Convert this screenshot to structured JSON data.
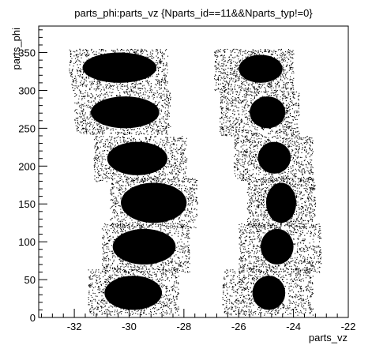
{
  "chart_data": {
    "type": "scatter",
    "title": "parts_phi:parts_vz {Nparts_id==11&&Nparts_typ!=0}",
    "xlabel": "parts_vz",
    "ylabel": "parts_phi",
    "xlim": [
      -33.3,
      -22.0
    ],
    "ylim": [
      0,
      385
    ],
    "x_ticks": [
      -32,
      -30,
      -28,
      -26,
      -24,
      -22
    ],
    "x_tick_labels": [
      "-32",
      "-30",
      "-28",
      "-26",
      "-24",
      "-22"
    ],
    "y_ticks": [
      0,
      50,
      100,
      150,
      200,
      250,
      300,
      350
    ],
    "y_tick_labels": [
      "0",
      "50",
      "100",
      "150",
      "200",
      "250",
      "300",
      "350"
    ],
    "grid": false,
    "legend": "none",
    "marker_color": "#000000",
    "clusters": [
      {
        "x_range": [
          -32.2,
          -28.6
        ],
        "y_range": [
          300,
          355
        ],
        "dense_x": [
          -31.7,
          -29.0
        ],
        "dense_y": [
          310,
          350
        ]
      },
      {
        "x_range": [
          -32.0,
          -28.5
        ],
        "y_range": [
          242,
          300
        ],
        "dense_x": [
          -31.4,
          -28.9
        ],
        "dense_y": [
          250,
          292
        ]
      },
      {
        "x_range": [
          -31.3,
          -27.9
        ],
        "y_range": [
          180,
          240
        ],
        "dense_x": [
          -30.8,
          -28.6
        ],
        "dense_y": [
          188,
          232
        ]
      },
      {
        "x_range": [
          -30.7,
          -27.5
        ],
        "y_range": [
          118,
          185
        ],
        "dense_x": [
          -30.3,
          -27.9
        ],
        "dense_y": [
          125,
          178
        ]
      },
      {
        "x_range": [
          -31.0,
          -27.8
        ],
        "y_range": [
          60,
          125
        ],
        "dense_x": [
          -30.6,
          -28.3
        ],
        "dense_y": [
          70,
          117
        ]
      },
      {
        "x_range": [
          -31.5,
          -28.2
        ],
        "y_range": [
          3,
          65
        ],
        "dense_x": [
          -30.9,
          -28.8
        ],
        "dense_y": [
          10,
          55
        ]
      },
      {
        "x_range": [
          -26.9,
          -24.0
        ],
        "y_range": [
          300,
          355
        ],
        "dense_x": [
          -26.0,
          -24.4
        ],
        "dense_y": [
          310,
          347
        ]
      },
      {
        "x_range": [
          -26.7,
          -23.8
        ],
        "y_range": [
          240,
          300
        ],
        "dense_x": [
          -25.6,
          -24.3
        ],
        "dense_y": [
          250,
          292
        ]
      },
      {
        "x_range": [
          -26.2,
          -23.3
        ],
        "y_range": [
          180,
          240
        ],
        "dense_x": [
          -25.3,
          -24.1
        ],
        "dense_y": [
          190,
          232
        ]
      },
      {
        "x_range": [
          -25.7,
          -23.2
        ],
        "y_range": [
          118,
          185
        ],
        "dense_x": [
          -25.0,
          -23.9
        ],
        "dense_y": [
          125,
          178
        ]
      },
      {
        "x_range": [
          -26.0,
          -23.0
        ],
        "y_range": [
          60,
          125
        ],
        "dense_x": [
          -25.2,
          -24.0
        ],
        "dense_y": [
          70,
          117
        ]
      },
      {
        "x_range": [
          -26.6,
          -23.3
        ],
        "y_range": [
          3,
          65
        ],
        "dense_x": [
          -25.5,
          -24.3
        ],
        "dense_y": [
          10,
          55
        ]
      }
    ]
  }
}
